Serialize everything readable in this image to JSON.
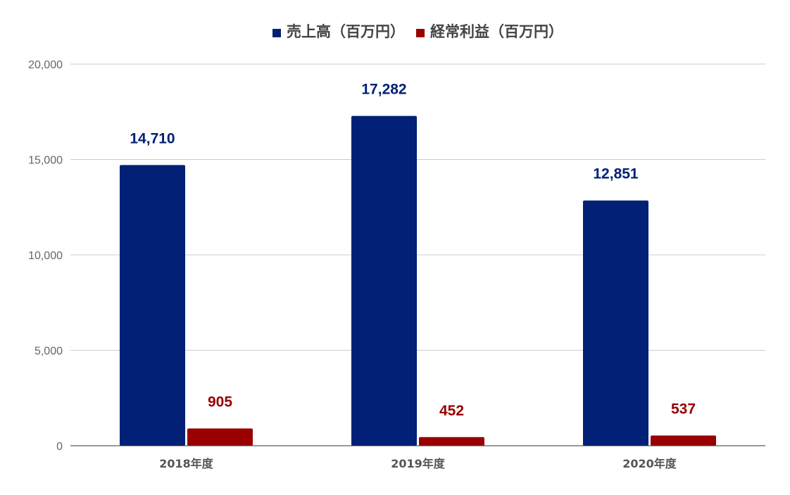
{
  "chart_data": {
    "type": "bar",
    "title": "",
    "xlabel": "",
    "ylabel": "",
    "categories": [
      "2018年度",
      "2019年度",
      "2020年度"
    ],
    "series": [
      {
        "name": "売上高（百万円）",
        "color": "#012076",
        "values": [
          14710,
          17282,
          12851
        ],
        "labels": [
          "14,710",
          "17,282",
          "12,851"
        ]
      },
      {
        "name": "経常利益（百万円）",
        "color": "#990000",
        "values": [
          905,
          452,
          537
        ],
        "labels": [
          "905",
          "452",
          "537"
        ]
      }
    ],
    "ylim": [
      0,
      20000
    ],
    "yticks": [
      0,
      5000,
      10000,
      15000,
      20000
    ],
    "ytick_labels": [
      "0",
      "5,000",
      "10,000",
      "15,000",
      "20,000"
    ],
    "grid": true,
    "legend_position": "top-center",
    "data_labels": true
  }
}
